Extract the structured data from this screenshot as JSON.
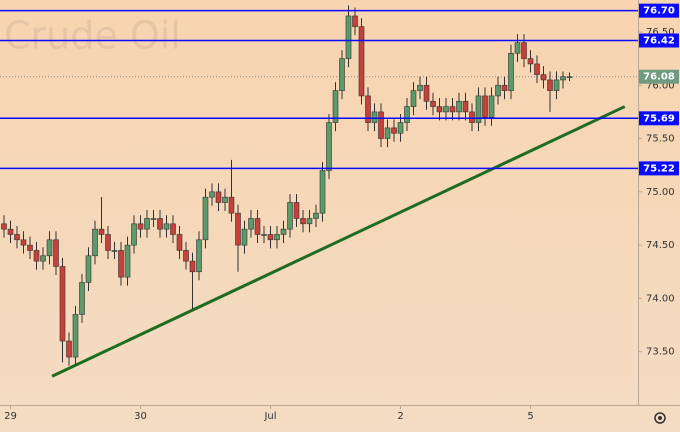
{
  "chart_data": {
    "type": "candlestick",
    "watermark": "Crude Oil",
    "categories": [
      null,
      "29",
      null,
      null,
      null,
      null,
      null,
      null,
      null,
      null,
      null,
      null,
      null,
      null,
      null,
      null,
      null,
      null,
      null,
      null,
      null,
      "30",
      null,
      null,
      null,
      null,
      null,
      null,
      null,
      null,
      null,
      null,
      null,
      null,
      null,
      null,
      null,
      null,
      null,
      null,
      null,
      "Jul",
      null,
      null,
      null,
      null,
      null,
      null,
      null,
      null,
      null,
      null,
      null,
      null,
      null,
      null,
      null,
      null,
      null,
      null,
      null,
      "2",
      null,
      null,
      null,
      null,
      null,
      null,
      null,
      null,
      null,
      null,
      null,
      null,
      null,
      null,
      null,
      null,
      null,
      null,
      null,
      "5",
      null,
      null,
      null,
      null,
      null,
      null
    ],
    "open": [
      74.7,
      74.65,
      74.6,
      74.55,
      74.5,
      74.45,
      74.35,
      74.4,
      74.55,
      74.3,
      73.6,
      73.45,
      73.85,
      74.15,
      74.4,
      74.65,
      74.6,
      74.45,
      74.45,
      74.2,
      74.5,
      74.7,
      74.65,
      74.75,
      74.75,
      74.65,
      74.7,
      74.6,
      74.45,
      74.35,
      74.25,
      74.55,
      74.95,
      75.0,
      74.9,
      74.95,
      74.8,
      74.5,
      74.65,
      74.75,
      74.6,
      74.6,
      74.55,
      74.6,
      74.65,
      74.9,
      74.75,
      74.7,
      74.75,
      74.8,
      75.2,
      75.65,
      75.95,
      76.25,
      76.65,
      76.55,
      75.9,
      75.65,
      75.75,
      75.5,
      75.6,
      75.55,
      75.65,
      75.8,
      75.95,
      76.0,
      75.85,
      75.8,
      75.75,
      75.8,
      75.75,
      75.85,
      75.75,
      75.65,
      75.9,
      75.7,
      75.9,
      76.0,
      75.95,
      76.3,
      76.4,
      76.25,
      76.2,
      76.1,
      76.05,
      75.95,
      76.05,
      76.08
    ],
    "high": [
      74.78,
      74.73,
      74.68,
      74.63,
      74.58,
      74.53,
      74.48,
      74.63,
      74.63,
      74.38,
      73.68,
      73.93,
      74.23,
      74.48,
      74.73,
      74.95,
      74.68,
      74.53,
      74.53,
      74.58,
      74.78,
      74.78,
      74.83,
      74.83,
      74.83,
      74.78,
      74.78,
      74.68,
      74.53,
      74.43,
      74.63,
      75.03,
      75.08,
      75.08,
      75.03,
      75.3,
      74.88,
      74.73,
      74.83,
      74.83,
      74.68,
      74.68,
      74.68,
      74.73,
      74.98,
      74.98,
      74.83,
      74.83,
      74.88,
      75.28,
      75.73,
      76.03,
      76.33,
      76.75,
      76.73,
      76.63,
      75.98,
      75.83,
      75.83,
      75.68,
      75.68,
      75.73,
      75.88,
      76.03,
      76.08,
      76.08,
      75.93,
      75.88,
      75.88,
      75.88,
      75.93,
      75.93,
      75.83,
      75.98,
      75.98,
      75.98,
      76.08,
      76.08,
      76.38,
      76.48,
      76.48,
      76.33,
      76.28,
      76.18,
      76.13,
      76.13,
      76.13,
      76.12
    ],
    "low": [
      74.57,
      74.52,
      74.47,
      74.42,
      74.37,
      74.27,
      74.27,
      74.32,
      74.22,
      73.4,
      73.37,
      73.37,
      73.77,
      74.07,
      74.32,
      74.52,
      74.37,
      74.37,
      74.12,
      74.12,
      74.42,
      74.57,
      74.57,
      74.67,
      74.57,
      74.57,
      74.52,
      74.37,
      74.27,
      73.9,
      74.17,
      74.47,
      74.87,
      74.82,
      74.82,
      74.72,
      74.25,
      74.42,
      74.57,
      74.52,
      74.52,
      74.47,
      74.47,
      74.52,
      74.57,
      74.67,
      74.62,
      74.62,
      74.67,
      74.72,
      75.12,
      75.57,
      75.87,
      76.17,
      76.47,
      75.82,
      75.57,
      75.57,
      75.42,
      75.42,
      75.47,
      75.47,
      75.57,
      75.72,
      75.87,
      75.77,
      75.72,
      75.67,
      75.67,
      75.67,
      75.67,
      75.67,
      75.57,
      75.57,
      75.62,
      75.62,
      75.82,
      75.87,
      75.87,
      76.22,
      76.17,
      76.12,
      76.02,
      75.97,
      75.75,
      75.87,
      75.97,
      76.04
    ],
    "close": [
      74.65,
      74.6,
      74.55,
      74.5,
      74.45,
      74.35,
      74.4,
      74.55,
      74.3,
      73.6,
      73.45,
      73.85,
      74.15,
      74.4,
      74.65,
      74.6,
      74.45,
      74.45,
      74.2,
      74.5,
      74.7,
      74.65,
      74.75,
      74.75,
      74.65,
      74.7,
      74.6,
      74.45,
      74.35,
      74.25,
      74.55,
      74.95,
      75.0,
      74.9,
      74.95,
      74.8,
      74.5,
      74.65,
      74.75,
      74.6,
      74.6,
      74.55,
      74.6,
      74.65,
      74.9,
      74.75,
      74.7,
      74.75,
      74.8,
      75.2,
      75.65,
      75.95,
      76.25,
      76.65,
      76.55,
      75.9,
      75.65,
      75.75,
      75.5,
      75.6,
      75.55,
      75.65,
      75.8,
      75.95,
      76.0,
      75.85,
      75.8,
      75.75,
      75.8,
      75.75,
      75.85,
      75.75,
      75.65,
      75.9,
      75.7,
      75.9,
      76.0,
      75.95,
      76.3,
      76.4,
      76.25,
      76.2,
      76.1,
      76.05,
      75.95,
      76.05,
      76.08,
      76.08
    ],
    "up_color": "#5b9a6a",
    "down_color": "#c8403a",
    "ylim": [
      73.0,
      76.8
    ],
    "yticks": [
      {
        "value": 73.5,
        "label": "73.50"
      },
      {
        "value": 74.0,
        "label": "74.00"
      },
      {
        "value": 74.5,
        "label": "74.50"
      },
      {
        "value": 75.0,
        "label": "75.00"
      },
      {
        "value": 75.5,
        "label": "75.50"
      },
      {
        "value": 76.0,
        "label": "76.00"
      },
      {
        "value": 76.5,
        "label": "76.50"
      }
    ],
    "levels": [
      {
        "value": 76.7,
        "label": "76.70"
      },
      {
        "value": 76.42,
        "label": "76.42"
      },
      {
        "value": 75.69,
        "label": "75.69"
      },
      {
        "value": 75.22,
        "label": "75.22"
      }
    ],
    "level_color": "#0a0aff",
    "last_price": {
      "value": 76.08,
      "label": "76.08"
    },
    "trendline": {
      "x": [
        7.4,
        95.5
      ],
      "y": [
        73.27,
        75.8
      ],
      "color": "#1f6b22"
    }
  }
}
